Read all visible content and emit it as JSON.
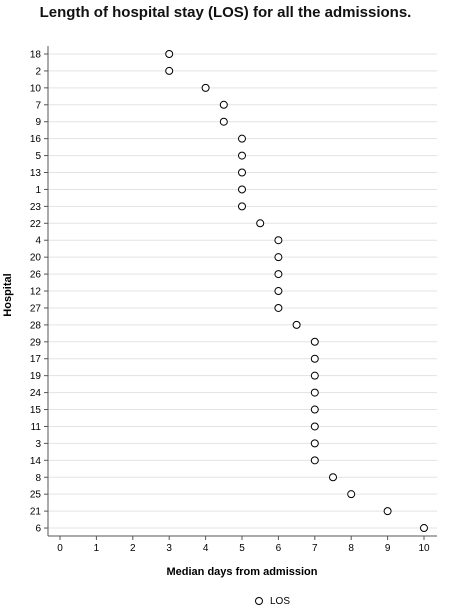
{
  "chart_data": {
    "type": "scatter",
    "title": "Length of hospital stay (LOS) for all the admissions.",
    "xlabel": "Median days from admission",
    "ylabel": "Hospital",
    "xlim": [
      0,
      10
    ],
    "xticks": [
      "0",
      "1",
      "2",
      "3",
      "4",
      "5",
      "6",
      "7",
      "8",
      "9",
      "10"
    ],
    "grid": "horizontal",
    "legend": {
      "position": "bottom-center",
      "entries": [
        "LOS"
      ]
    },
    "categories": [
      "18",
      "2",
      "10",
      "7",
      "9",
      "16",
      "5",
      "13",
      "1",
      "23",
      "22",
      "4",
      "20",
      "26",
      "12",
      "27",
      "28",
      "29",
      "17",
      "19",
      "24",
      "15",
      "11",
      "3",
      "14",
      "8",
      "25",
      "21",
      "6"
    ],
    "series": [
      {
        "name": "LOS",
        "values": [
          3,
          3,
          4,
          4.5,
          4.5,
          5,
          5,
          5,
          5,
          5,
          5.5,
          6,
          6,
          6,
          6,
          6,
          6.5,
          7,
          7,
          7,
          7,
          7,
          7,
          7,
          7,
          7.5,
          8,
          9,
          10
        ]
      }
    ]
  }
}
